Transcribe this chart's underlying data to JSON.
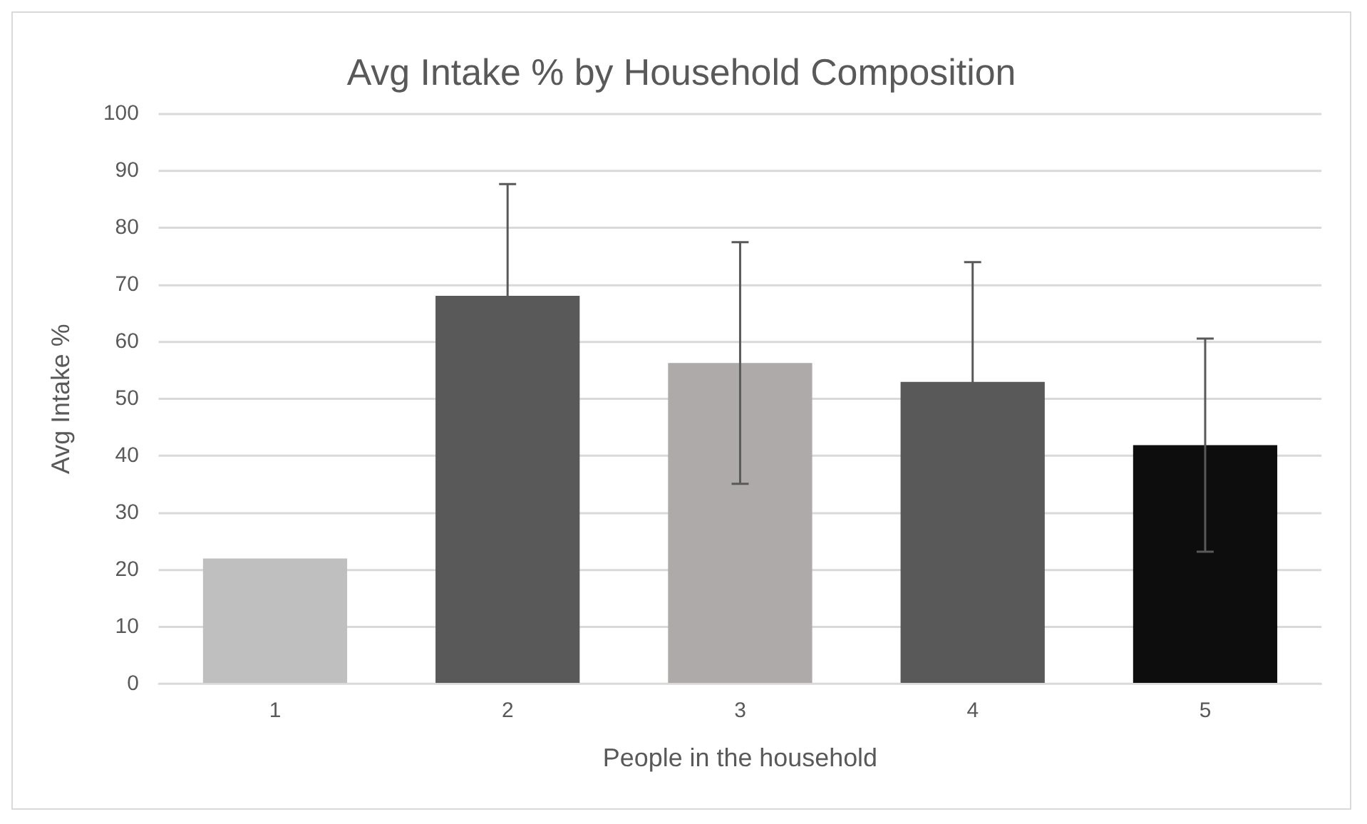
{
  "chart_data": {
    "type": "bar",
    "title": "Avg Intake % by Household Composition",
    "xlabel": "People in the household",
    "ylabel": "Avg Intake %",
    "categories": [
      "1",
      "2",
      "3",
      "4",
      "5"
    ],
    "values": [
      22,
      68.1,
      56.3,
      53,
      41.9
    ],
    "colors": [
      "#bfbfbf",
      "#595959",
      "#aeaaaa",
      "#595959",
      "#0d0d0d"
    ],
    "errors": [
      null,
      19.6,
      21.2,
      21,
      18.7
    ],
    "ylim": [
      0,
      100
    ],
    "yticks": [
      0,
      10,
      20,
      30,
      40,
      50,
      60,
      70,
      80,
      90,
      100
    ],
    "grid": "y",
    "legend": false
  }
}
